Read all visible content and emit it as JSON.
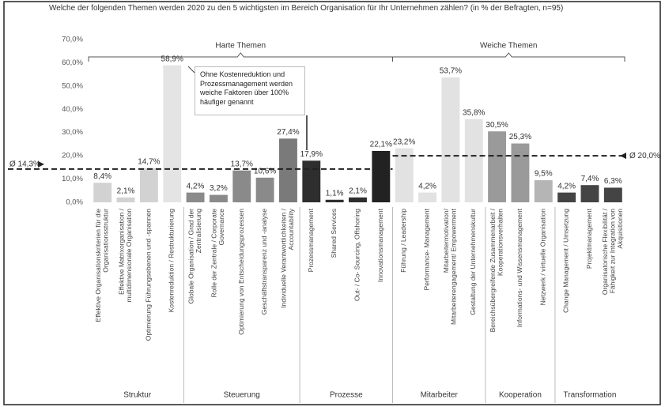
{
  "chart_data": {
    "type": "bar",
    "title": "Welche der folgenden Themen werden 2020 zu den 5 wichtigsten im Bereich Organisation für Ihr Unternehmen zählen? (in % der Befragten, n=95)",
    "categories": [
      "Effektive Organisationskriterien für die Organisationsstruktur",
      "Effektive Matrixorganisation / multidimensionale Organisation",
      "Optimierung Führungsebenen und -spannen",
      "Kostenreduktion / Restrukturierung",
      "Globale Organisation / Grad der Zentralisierung",
      "Rolle der Zentrale / Corporate Governance",
      "Optimierung von Entscheidungsprozessen",
      "Geschäftstransparenz und -analyse",
      "Individuelle Verantwortlichkeiten / Accountability",
      "Prozessmanagement",
      "Shared Services",
      "Out- / Co- Sourcing, Offshoring",
      "Innovationsmanagement",
      "Führung / Leadership",
      "Performance- Management",
      "Mitarbeitermotivation/ Mitarbeiterengagement/ Empowerment",
      "Gestaltung der Unternehmenskultur",
      "Bereichsübergreifende Zusammenarbeit / Kooperationsverhalten",
      "Informations- und Wissensmanagement",
      "Netzwerk / virtuelle Organisation",
      "Change Management / Umsetzung",
      "Projektmanagement",
      "Organisatorische Flexibilität / Fähigkeit zur Integration von Akquisitionen"
    ],
    "values": [
      8.4,
      2.1,
      14.7,
      58.9,
      4.2,
      3.2,
      13.7,
      10.6,
      27.4,
      17.9,
      1.1,
      2.1,
      22.1,
      23.2,
      4.2,
      53.7,
      35.8,
      30.5,
      25.3,
      9.5,
      4.2,
      7.4,
      6.3
    ],
    "value_labels": [
      "8,4%",
      "2,1%",
      "14,7%",
      "58,9%",
      "4,2%",
      "3,2%",
      "13,7%",
      "10,6%",
      "27,4%",
      "17,9%",
      "1,1%",
      "2,1%",
      "22,1%",
      "23,2%",
      "4,2%",
      "53,7%",
      "35,8%",
      "30,5%",
      "25,3%",
      "9,5%",
      "4,2%",
      "7,4%",
      "6,3%"
    ],
    "colors": [
      "#d2d2d2",
      "#d2d2d2",
      "#d2d2d2",
      "#e4e4e4",
      "#8a8a8a",
      "#8a8a8a",
      "#8a8a8a",
      "#8a8a8a",
      "#7a7a7a",
      "#2e2e2e",
      "#2e2e2e",
      "#2e2e2e",
      "#222222",
      "#e2e2e2",
      "#e2e2e2",
      "#e2e2e2",
      "#e2e2e2",
      "#9a9a9a",
      "#9a9a9a",
      "#b5b5b5",
      "#444444",
      "#444444",
      "#444444"
    ],
    "groups": [
      {
        "name": "Struktur",
        "count": 4
      },
      {
        "name": "Steuerung",
        "count": 5
      },
      {
        "name": "Prozesse",
        "count": 4
      },
      {
        "name": "Mitarbeiter",
        "count": 4
      },
      {
        "name": "Kooperation",
        "count": 3
      },
      {
        "name": "Transformation",
        "count": 3
      }
    ],
    "themes": [
      {
        "name": "Harte Themen",
        "groups": 3
      },
      {
        "name": "Weiche Themen",
        "groups": 3
      }
    ],
    "averages": [
      {
        "label": "Ø 14,3%",
        "value": 14.3
      },
      {
        "label": "Ø 20,0%",
        "value": 20.0
      }
    ],
    "annotation": "Ohne Kostenreduktion und Prozessmanagement werden weiche Faktoren über 100% häufiger genannt",
    "ylim": [
      0,
      70
    ],
    "yticks": [
      {
        "value": 0,
        "label": "0,0%"
      },
      {
        "value": 10,
        "label": "10,0%"
      },
      {
        "value": 20,
        "label": "20,0%"
      },
      {
        "value": 30,
        "label": "30,0%"
      },
      {
        "value": 40,
        "label": "40,0%"
      },
      {
        "value": 50,
        "label": "50,0%"
      },
      {
        "value": 60,
        "label": "60,0%"
      },
      {
        "value": 70,
        "label": "70,0%"
      }
    ],
    "grid": false
  }
}
